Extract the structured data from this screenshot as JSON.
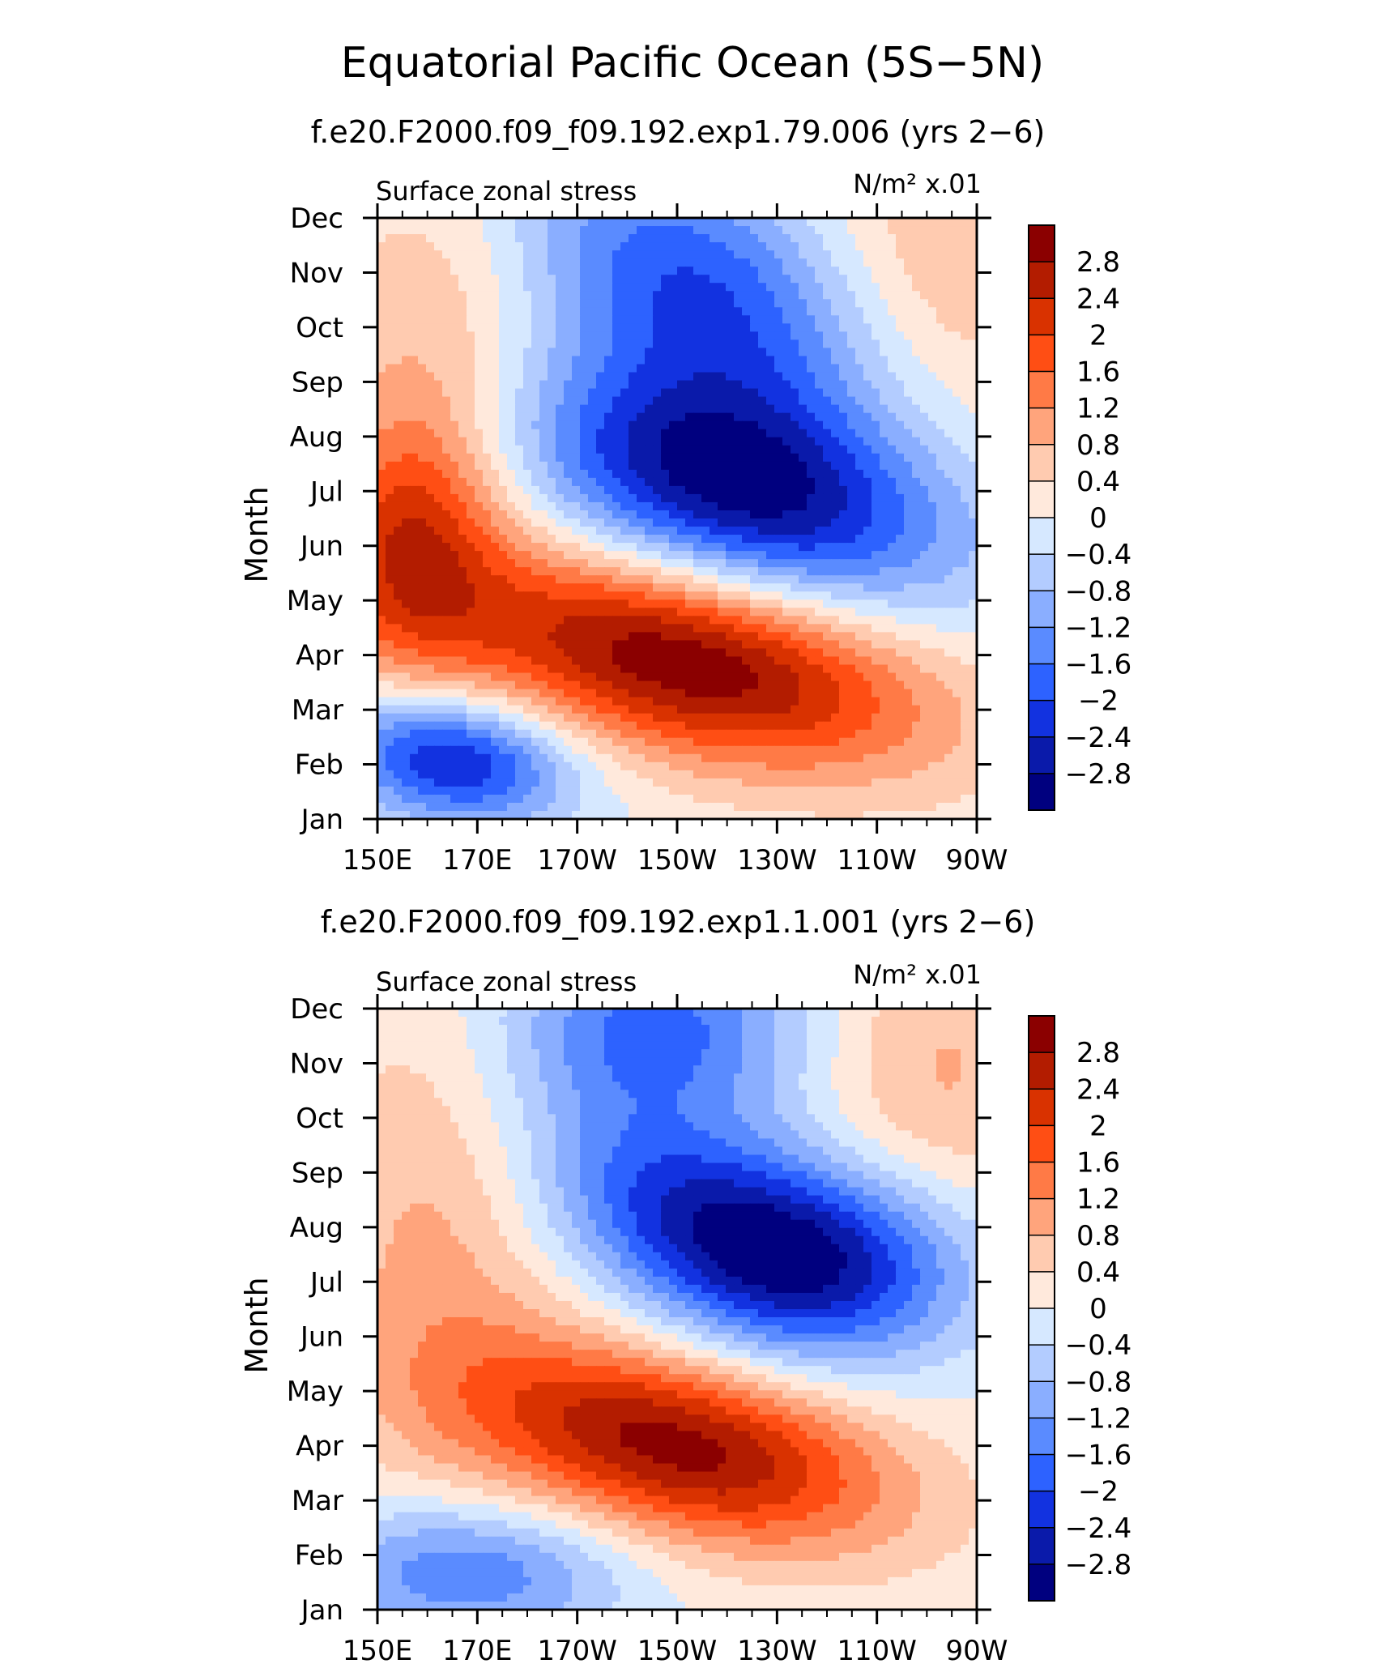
{
  "figure": {
    "title": "Equatorial Pacific Ocean (5S−5N)"
  },
  "chart_data": [
    {
      "type": "heatmap",
      "title": "f.e20.F2000.f09_f09.192.exp1.79.006 (yrs 2−6)",
      "left_label": "Surface zonal stress",
      "right_label": "N/m² x.01",
      "ylabel": "Month",
      "xlabel": "",
      "x_tick_labels": [
        "150E",
        "170E",
        "170W",
        "150W",
        "130W",
        "110W",
        "90W"
      ],
      "y_tick_labels": [
        "Jan",
        "Feb",
        "Mar",
        "Apr",
        "May",
        "Jun",
        "Jul",
        "Aug",
        "Sep",
        "Oct",
        "Nov",
        "Dec"
      ],
      "xlim": [
        150,
        270
      ],
      "ylim": [
        1,
        12
      ],
      "colorbar": {
        "levels": [
          2.8,
          2.4,
          2,
          1.6,
          1.2,
          0.8,
          0.4,
          0,
          -0.4,
          -0.8,
          -1.2,
          -1.6,
          -2,
          -2.4,
          -2.8
        ],
        "labels": [
          "2.8",
          "2.4",
          "2",
          "1.6",
          "1.2",
          "0.8",
          "0.4",
          "0",
          "−0.4",
          "−0.8",
          "−1.2",
          "−1.6",
          "−2",
          "−2.4",
          "−2.8"
        ],
        "colors": [
          "#8b0000",
          "#b31c00",
          "#d93200",
          "#ff4e14",
          "#ff7a46",
          "#ffa47c",
          "#ffcbb0",
          "#ffe9dc",
          "#d6e8ff",
          "#b3ccff",
          "#8aaeff",
          "#5a8bff",
          "#2d62ff",
          "#1232e0",
          "#0a1aaa",
          "#00007f"
        ]
      },
      "features": [
        {
          "x": 212,
          "y": 3.9,
          "value": 3.2,
          "sx": 34,
          "sy": 1.25,
          "tilt": -0.018
        },
        {
          "x": 222,
          "y": 7.1,
          "value": -3.1,
          "sx": 30,
          "sy": 1.4,
          "tilt": -0.02
        },
        {
          "x": 215,
          "y": 10.7,
          "value": -2.0,
          "sx": 26,
          "sy": 1.6,
          "tilt": -0.03
        },
        {
          "x": 165,
          "y": 2.1,
          "value": -2.6,
          "sx": 16,
          "sy": 0.8,
          "tilt": -0.01
        },
        {
          "x": 156,
          "y": 6.0,
          "value": 1.6,
          "sx": 12,
          "sy": 1.7,
          "tilt": 0
        },
        {
          "x": 162,
          "y": 9.0,
          "value": 0.9,
          "sx": 16,
          "sy": 3.0,
          "tilt": 0
        },
        {
          "x": 262,
          "y": 11.0,
          "value": 0.8,
          "sx": 20,
          "sy": 2.4,
          "tilt": 0
        }
      ]
    },
    {
      "type": "heatmap",
      "title": "f.e20.F2000.f09_f09.192.exp1.1.001 (yrs 2−6)",
      "left_label": "Surface zonal stress",
      "right_label": "N/m² x.01",
      "ylabel": "Month",
      "xlabel": "",
      "x_tick_labels": [
        "150E",
        "170E",
        "170W",
        "150W",
        "130W",
        "110W",
        "90W"
      ],
      "y_tick_labels": [
        "Jan",
        "Feb",
        "Mar",
        "Apr",
        "May",
        "Jun",
        "Jul",
        "Aug",
        "Sep",
        "Oct",
        "Nov",
        "Dec"
      ],
      "xlim": [
        150,
        270
      ],
      "ylim": [
        1,
        12
      ],
      "colorbar": {
        "levels": [
          2.8,
          2.4,
          2,
          1.6,
          1.2,
          0.8,
          0.4,
          0,
          -0.4,
          -0.8,
          -1.2,
          -1.6,
          -2,
          -2.4,
          -2.8
        ],
        "labels": [
          "2.8",
          "2.4",
          "2",
          "1.6",
          "1.2",
          "0.8",
          "0.4",
          "0",
          "−0.4",
          "−0.8",
          "−1.2",
          "−1.6",
          "−2",
          "−2.4",
          "−2.8"
        ],
        "colors": [
          "#8b0000",
          "#b31c00",
          "#d93200",
          "#ff4e14",
          "#ff7a46",
          "#ffa47c",
          "#ffcbb0",
          "#ffe9dc",
          "#d6e8ff",
          "#b3ccff",
          "#8aaeff",
          "#5a8bff",
          "#2d62ff",
          "#1232e0",
          "#0a1aaa",
          "#00007f"
        ]
      },
      "features": [
        {
          "x": 210,
          "y": 4.0,
          "value": 3.0,
          "sx": 30,
          "sy": 1.2,
          "tilt": -0.018
        },
        {
          "x": 240,
          "y": 7.3,
          "value": -2.4,
          "sx": 22,
          "sy": 1.3,
          "tilt": 0
        },
        {
          "x": 212,
          "y": 8.3,
          "value": -1.9,
          "sx": 22,
          "sy": 1.2,
          "tilt": -0.02
        },
        {
          "x": 205,
          "y": 11.6,
          "value": -1.8,
          "sx": 22,
          "sy": 1.3,
          "tilt": 0
        },
        {
          "x": 168,
          "y": 1.7,
          "value": -1.6,
          "sx": 22,
          "sy": 0.9,
          "tilt": 0
        },
        {
          "x": 162,
          "y": 8.0,
          "value": 0.9,
          "sx": 18,
          "sy": 3.2,
          "tilt": 0
        },
        {
          "x": 262,
          "y": 10.6,
          "value": 0.9,
          "sx": 18,
          "sy": 2.4,
          "tilt": 0
        }
      ]
    }
  ]
}
